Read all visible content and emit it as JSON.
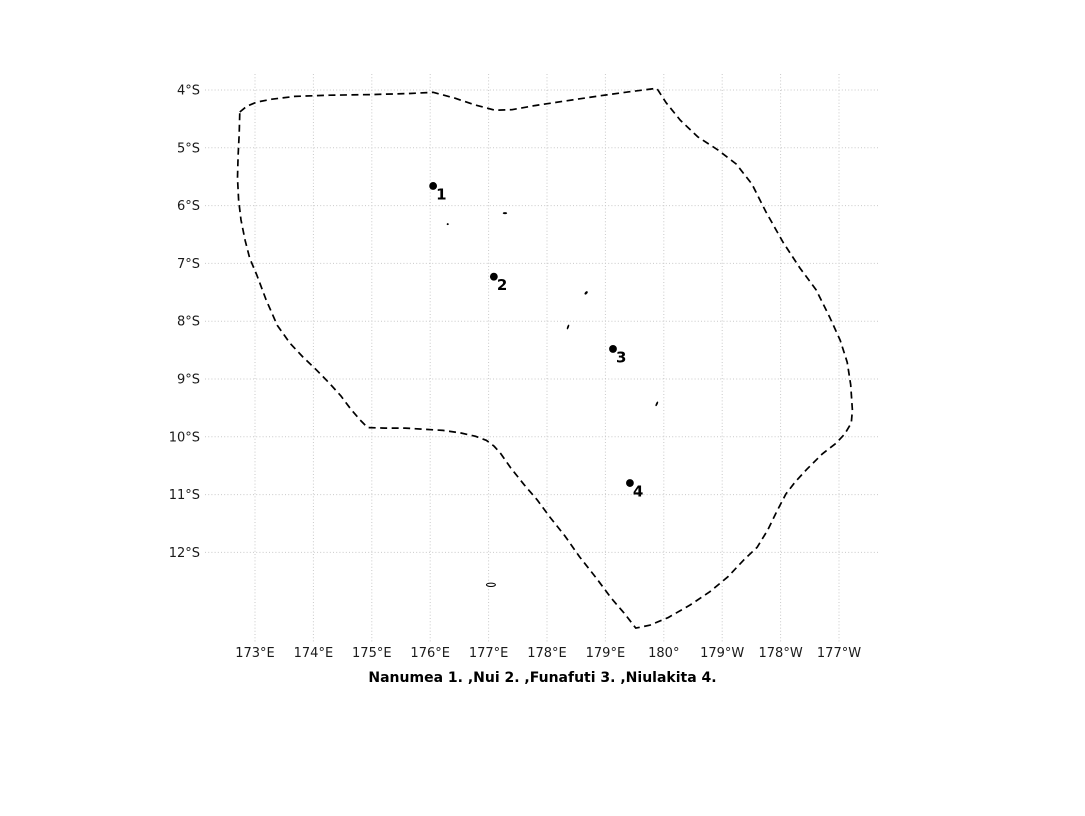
{
  "chart_data": {
    "type": "scatter",
    "subtype": "geographic-map",
    "title": "",
    "caption": "Nanumea 1. ,Nui 2. ,Funafuti 3. ,Niulakita 4.",
    "xlabel": "",
    "ylabel": "",
    "grid": true,
    "legend": "none",
    "xlim_deg_east": [
      172.14,
      183.67
    ],
    "ylim_deg_south": [
      3.72,
      13.57
    ],
    "x_ticks": [
      {
        "label": "173°E",
        "lon": 173
      },
      {
        "label": "174°E",
        "lon": 174
      },
      {
        "label": "175°E",
        "lon": 175
      },
      {
        "label": "176°E",
        "lon": 176
      },
      {
        "label": "177°E",
        "lon": 177
      },
      {
        "label": "178°E",
        "lon": 178
      },
      {
        "label": "179°E",
        "lon": 179
      },
      {
        "label": "180°",
        "lon": 180
      },
      {
        "label": "179°W",
        "lon": 181
      },
      {
        "label": "178°W",
        "lon": 182
      },
      {
        "label": "177°W",
        "lon": 183
      }
    ],
    "y_ticks": [
      {
        "label": "4°S",
        "lat": 4
      },
      {
        "label": "5°S",
        "lat": 5
      },
      {
        "label": "6°S",
        "lat": 6
      },
      {
        "label": "7°S",
        "lat": 7
      },
      {
        "label": "8°S",
        "lat": 8
      },
      {
        "label": "9°S",
        "lat": 9
      },
      {
        "label": "10°S",
        "lat": 10
      },
      {
        "label": "11°S",
        "lat": 11
      },
      {
        "label": "12°S",
        "lat": 12
      }
    ],
    "points": [
      {
        "number": "1",
        "name": "Nanumea",
        "lon": 176.05,
        "lat": 5.66
      },
      {
        "number": "2",
        "name": "Nui",
        "lon": 177.09,
        "lat": 7.23
      },
      {
        "number": "3",
        "name": "Funafuti",
        "lon": 179.13,
        "lat": 8.48
      },
      {
        "number": "4",
        "name": "Niulakita",
        "lon": 179.42,
        "lat": 10.8
      }
    ],
    "islets": [
      {
        "id": "islet-a",
        "lon": 177.28,
        "lat": 6.13,
        "w": 4.2,
        "h": 2.0,
        "rot": 0,
        "filled": true
      },
      {
        "id": "islet-b",
        "lon": 176.3,
        "lat": 6.32,
        "w": 2.0,
        "h": 2.0,
        "rot": 0,
        "filled": true
      },
      {
        "id": "islet-c",
        "lon": 178.67,
        "lat": 7.51,
        "w": 2.4,
        "h": 4.0,
        "rot": 40,
        "filled": true
      },
      {
        "id": "islet-d",
        "lon": 178.36,
        "lat": 8.1,
        "w": 1.8,
        "h": 5.0,
        "rot": 20,
        "filled": true
      },
      {
        "id": "islet-e",
        "lon": 179.88,
        "lat": 9.43,
        "w": 1.8,
        "h": 5.0,
        "rot": 25,
        "filled": true
      },
      {
        "id": "islet-f",
        "lon": 177.04,
        "lat": 12.56,
        "w": 9.0,
        "h": 3.4,
        "rot": 0,
        "filled": false
      }
    ],
    "boundary_style": "dashed",
    "boundary": [
      [
        172.74,
        4.38
      ],
      [
        172.86,
        4.28
      ],
      [
        173.03,
        4.21
      ],
      [
        173.29,
        4.16
      ],
      [
        173.68,
        4.11
      ],
      [
        174.28,
        4.09
      ],
      [
        174.97,
        4.08
      ],
      [
        175.65,
        4.06
      ],
      [
        176.05,
        4.04
      ],
      [
        176.42,
        4.14
      ],
      [
        176.77,
        4.26
      ],
      [
        177.11,
        4.35
      ],
      [
        177.4,
        4.34
      ],
      [
        177.79,
        4.27
      ],
      [
        178.31,
        4.19
      ],
      [
        178.91,
        4.1
      ],
      [
        179.42,
        4.03
      ],
      [
        179.88,
        3.97
      ],
      [
        180.04,
        4.22
      ],
      [
        180.28,
        4.52
      ],
      [
        180.58,
        4.81
      ],
      [
        180.93,
        5.04
      ],
      [
        181.24,
        5.28
      ],
      [
        181.51,
        5.63
      ],
      [
        181.75,
        6.11
      ],
      [
        182.04,
        6.63
      ],
      [
        182.33,
        7.08
      ],
      [
        182.61,
        7.46
      ],
      [
        182.84,
        7.93
      ],
      [
        183.02,
        8.33
      ],
      [
        183.14,
        8.71
      ],
      [
        183.2,
        9.1
      ],
      [
        183.23,
        9.54
      ],
      [
        183.21,
        9.76
      ],
      [
        183.1,
        9.95
      ],
      [
        182.95,
        10.11
      ],
      [
        182.71,
        10.3
      ],
      [
        182.45,
        10.56
      ],
      [
        182.25,
        10.78
      ],
      [
        182.09,
        10.99
      ],
      [
        181.94,
        11.28
      ],
      [
        181.78,
        11.61
      ],
      [
        181.6,
        11.91
      ],
      [
        181.37,
        12.13
      ],
      [
        181.1,
        12.42
      ],
      [
        180.79,
        12.68
      ],
      [
        180.45,
        12.91
      ],
      [
        180.07,
        13.13
      ],
      [
        179.76,
        13.26
      ],
      [
        179.52,
        13.31
      ],
      [
        179.32,
        13.05
      ],
      [
        179.1,
        12.79
      ],
      [
        178.84,
        12.44
      ],
      [
        178.56,
        12.08
      ],
      [
        178.31,
        11.72
      ],
      [
        178.05,
        11.39
      ],
      [
        177.83,
        11.09
      ],
      [
        177.61,
        10.83
      ],
      [
        177.38,
        10.54
      ],
      [
        177.2,
        10.28
      ],
      [
        177.09,
        10.16
      ],
      [
        176.96,
        10.06
      ],
      [
        176.77,
        9.99
      ],
      [
        176.51,
        9.93
      ],
      [
        176.22,
        9.89
      ],
      [
        175.91,
        9.87
      ],
      [
        175.57,
        9.85
      ],
      [
        175.23,
        9.85
      ],
      [
        174.93,
        9.84
      ],
      [
        174.8,
        9.71
      ],
      [
        174.64,
        9.52
      ],
      [
        174.47,
        9.29
      ],
      [
        174.27,
        9.07
      ],
      [
        174.04,
        8.83
      ],
      [
        173.82,
        8.62
      ],
      [
        173.6,
        8.38
      ],
      [
        173.38,
        8.07
      ],
      [
        173.19,
        7.63
      ],
      [
        173.03,
        7.2
      ],
      [
        172.91,
        6.91
      ],
      [
        172.83,
        6.6
      ],
      [
        172.76,
        6.25
      ],
      [
        172.72,
        5.9
      ],
      [
        172.7,
        5.52
      ],
      [
        172.71,
        5.14
      ],
      [
        172.73,
        4.76
      ]
    ],
    "colors": {
      "background": "#ffffff",
      "gridline": "#c9c9c9",
      "boundary": "#000000",
      "marker": "#000000",
      "tick_text": "#1a1a1a",
      "caption_text": "#000000"
    }
  }
}
